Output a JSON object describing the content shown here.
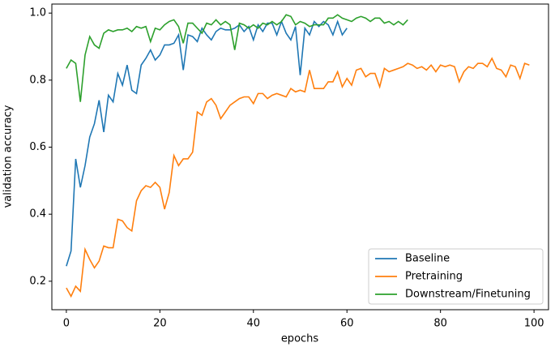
{
  "chart_data": {
    "type": "line",
    "xlabel": "epochs",
    "ylabel": "validation accuracy",
    "xlim": [
      -3.1,
      103.1
    ],
    "ylim": [
      0.115,
      1.027
    ],
    "xticks": [
      0,
      20,
      40,
      60,
      80,
      100
    ],
    "yticks": [
      0.2,
      0.4,
      0.6,
      0.8,
      {
        "value": 1,
        "label": "1.0"
      }
    ],
    "grid": false,
    "legend": "lower right",
    "x": [
      0,
      1,
      2,
      3,
      4,
      5,
      6,
      7,
      8,
      9,
      10,
      11,
      12,
      13,
      14,
      15,
      16,
      17,
      18,
      19,
      20,
      21,
      22,
      23,
      24,
      25,
      26,
      27,
      28,
      29,
      30,
      31,
      32,
      33,
      34,
      35,
      36,
      37,
      38,
      39,
      40,
      41,
      42,
      43,
      44,
      45,
      46,
      47,
      48,
      49,
      50,
      51,
      52,
      53,
      54,
      55,
      56,
      57,
      58,
      59,
      60,
      61,
      62,
      63,
      64,
      65,
      66,
      67,
      68,
      69,
      70,
      71,
      72,
      73,
      74,
      75,
      76,
      77,
      78,
      79,
      80,
      81,
      82,
      83,
      84,
      85,
      86,
      87,
      88,
      89,
      90,
      91,
      92,
      93,
      94,
      95,
      96,
      97,
      98,
      99
    ],
    "series": [
      {
        "name": "Baseline",
        "color": "#1f77b4",
        "values": [
          0.245,
          0.29,
          0.565,
          0.48,
          0.545,
          0.63,
          0.67,
          0.74,
          0.645,
          0.755,
          0.735,
          0.82,
          0.785,
          0.845,
          0.77,
          0.76,
          0.845,
          0.865,
          0.89,
          0.86,
          0.875,
          0.905,
          0.905,
          0.91,
          0.935,
          0.83,
          0.935,
          0.93,
          0.915,
          0.955,
          0.935,
          0.92,
          0.945,
          0.955,
          0.95,
          0.95,
          0.955,
          0.965,
          0.945,
          0.96,
          0.92,
          0.965,
          0.945,
          0.97,
          0.97,
          0.935,
          0.975,
          0.94,
          0.92,
          0.96,
          0.815,
          0.955,
          0.935,
          0.975,
          0.96,
          0.975,
          0.965,
          0.935,
          0.975,
          0.935,
          0.955,
          null,
          null,
          null,
          null,
          null,
          null,
          null,
          null,
          null,
          null,
          null,
          null,
          null,
          null,
          null,
          null,
          null,
          null,
          null,
          null,
          null,
          null,
          null,
          null,
          null,
          null,
          null,
          null,
          null,
          null,
          null,
          null,
          null,
          null,
          null,
          null,
          null,
          null,
          null
        ]
      },
      {
        "name": "Pretraining",
        "color": "#ff7f0e",
        "values": [
          0.18,
          0.155,
          0.185,
          0.17,
          0.295,
          0.265,
          0.24,
          0.26,
          0.305,
          0.3,
          0.3,
          0.385,
          0.38,
          0.36,
          0.35,
          0.44,
          0.47,
          0.485,
          0.48,
          0.495,
          0.48,
          0.415,
          0.465,
          0.575,
          0.545,
          0.565,
          0.565,
          0.585,
          0.705,
          0.695,
          0.735,
          0.745,
          0.725,
          0.685,
          0.705,
          0.725,
          0.735,
          0.745,
          0.75,
          0.75,
          0.73,
          0.76,
          0.76,
          0.745,
          0.755,
          0.76,
          0.755,
          0.75,
          0.775,
          0.765,
          0.77,
          0.765,
          0.83,
          0.775,
          0.775,
          0.775,
          0.795,
          0.795,
          0.825,
          0.78,
          0.805,
          0.785,
          0.83,
          0.835,
          0.81,
          0.82,
          0.82,
          0.78,
          0.835,
          0.825,
          0.83,
          0.835,
          0.84,
          0.85,
          0.845,
          0.835,
          0.84,
          0.83,
          0.845,
          0.825,
          0.845,
          0.84,
          0.845,
          0.84,
          0.795,
          0.825,
          0.84,
          0.835,
          0.85,
          0.85,
          0.84,
          0.865,
          0.835,
          0.83,
          0.81,
          0.845,
          0.84,
          0.805,
          0.85,
          0.845
        ]
      },
      {
        "name": "Downstream/Finetuning",
        "color": "#2ca02c",
        "values": [
          0.835,
          0.86,
          0.85,
          0.735,
          0.875,
          0.93,
          0.905,
          0.895,
          0.94,
          0.95,
          0.945,
          0.95,
          0.95,
          0.955,
          0.945,
          0.96,
          0.955,
          0.96,
          0.915,
          0.955,
          0.95,
          0.965,
          0.975,
          0.98,
          0.96,
          0.91,
          0.97,
          0.97,
          0.955,
          0.94,
          0.97,
          0.965,
          0.98,
          0.965,
          0.975,
          0.965,
          0.89,
          0.97,
          0.965,
          0.955,
          0.965,
          0.955,
          0.97,
          0.965,
          0.975,
          0.965,
          0.975,
          0.995,
          0.99,
          0.965,
          0.975,
          0.97,
          0.96,
          0.965,
          0.965,
          0.965,
          0.985,
          0.985,
          0.995,
          0.985,
          0.98,
          0.975,
          0.985,
          0.99,
          0.985,
          0.975,
          0.985,
          0.985,
          0.97,
          0.975,
          0.965,
          0.975,
          0.965,
          0.98,
          null,
          null,
          null,
          null,
          null,
          null,
          null,
          null,
          null,
          null,
          null,
          null,
          null,
          null,
          null,
          null,
          null,
          null,
          null,
          null,
          null,
          null,
          null,
          null,
          null,
          null
        ]
      }
    ]
  }
}
